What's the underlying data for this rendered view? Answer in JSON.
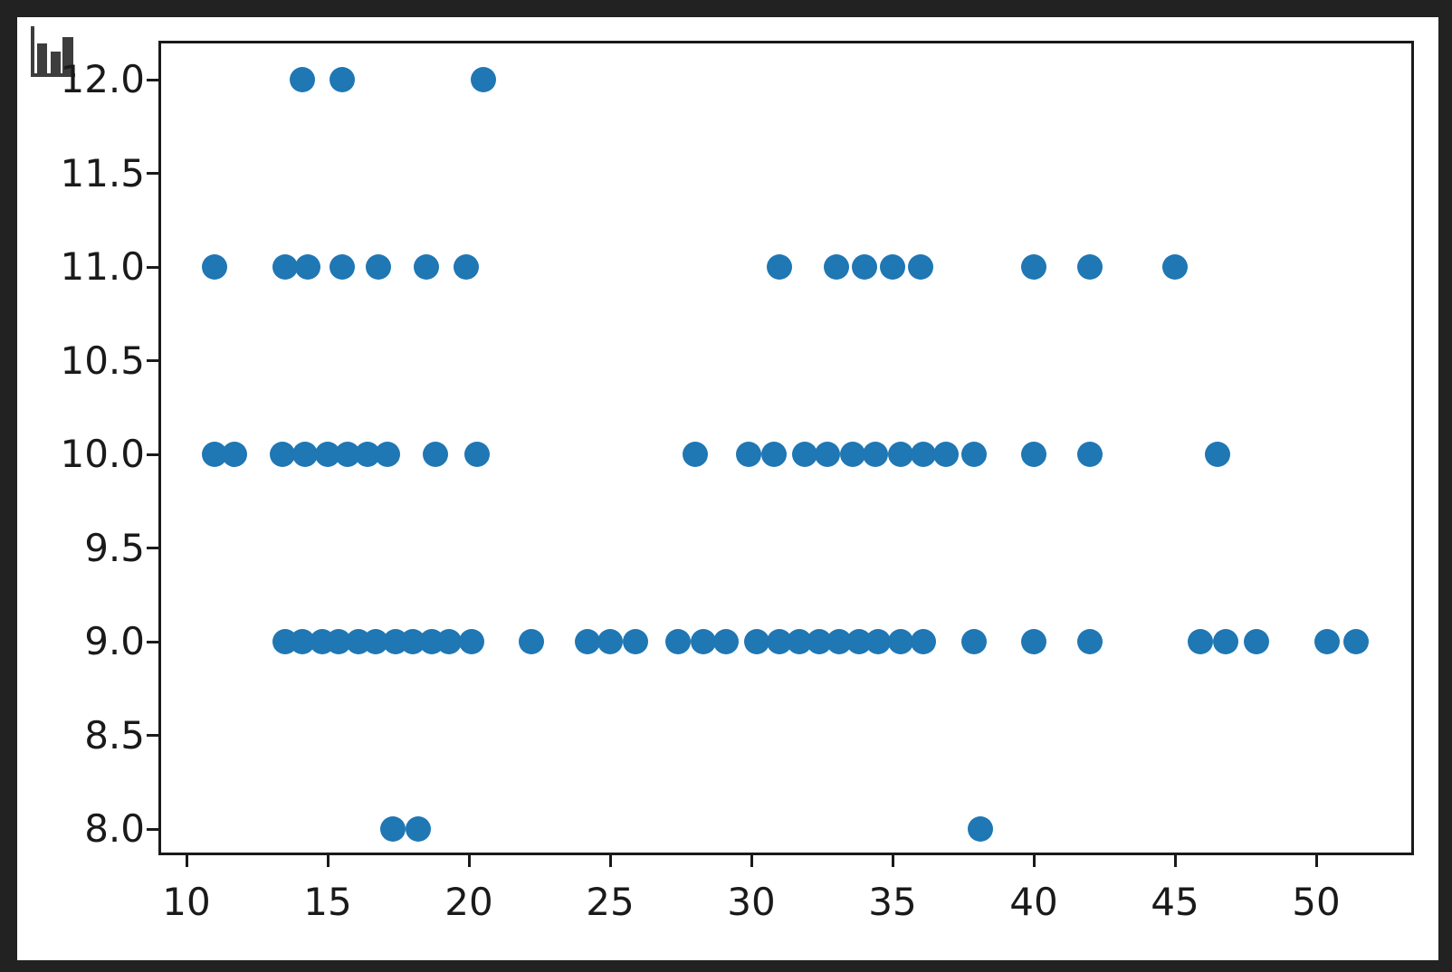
{
  "window": {
    "frame_color": "#222222",
    "figure_background": "#ffffff"
  },
  "icons": {
    "corner_icon": "bar-chart-icon",
    "corner_icon_color": "#3d3d3d"
  },
  "chart_data": {
    "type": "scatter",
    "title": "",
    "xlabel": "",
    "ylabel": "",
    "legend": null,
    "grid": false,
    "marker": {
      "shape": "circle",
      "color": "#1f77b4",
      "radius_px": 14
    },
    "axes": {
      "xlim": [
        9.0,
        53.5
      ],
      "ylim": [
        7.86,
        12.21
      ],
      "x_ticks": [
        10,
        15,
        20,
        25,
        30,
        35,
        40,
        45,
        50
      ],
      "x_tick_labels": [
        "10",
        "15",
        "20",
        "25",
        "30",
        "35",
        "40",
        "45",
        "50"
      ],
      "y_ticks": [
        8.0,
        8.5,
        9.0,
        9.5,
        10.0,
        10.5,
        11.0,
        11.5,
        12.0
      ],
      "y_tick_labels": [
        "8.0",
        "8.5",
        "9.0",
        "9.5",
        "10.0",
        "10.5",
        "11.0",
        "11.5",
        "12.0"
      ],
      "spine_color": "#1a1a1a",
      "tick_color": "#1a1a1a",
      "tick_label_color": "#1a1a1a"
    },
    "rows": [
      {
        "y": 12,
        "x": [
          14.1,
          15.5,
          20.5
        ]
      },
      {
        "y": 11,
        "x": [
          11.0,
          13.5,
          14.3,
          15.5,
          16.8,
          18.5,
          19.9,
          31.0,
          33.0,
          34.0,
          35.0,
          36.0,
          40.0,
          42.0,
          45.0
        ]
      },
      {
        "y": 10,
        "x": [
          11.0,
          11.7,
          13.4,
          14.2,
          15.0,
          15.7,
          16.4,
          17.1,
          18.8,
          20.3,
          28.0,
          29.9,
          30.8,
          31.9,
          32.7,
          33.6,
          34.4,
          35.3,
          36.1,
          36.9,
          37.9,
          40.0,
          42.0,
          46.5
        ]
      },
      {
        "y": 9,
        "x": [
          13.5,
          14.1,
          14.8,
          15.4,
          16.1,
          16.7,
          17.4,
          18.0,
          18.7,
          19.3,
          20.1,
          22.2,
          24.2,
          25.0,
          25.9,
          27.4,
          28.3,
          29.1,
          30.2,
          31.0,
          31.7,
          32.4,
          33.1,
          33.8,
          34.5,
          35.3,
          36.1,
          37.9,
          40.0,
          42.0,
          45.9,
          46.8,
          47.9,
          50.4,
          51.4
        ]
      },
      {
        "y": 8,
        "x": [
          17.3,
          18.2,
          38.1
        ]
      }
    ]
  }
}
